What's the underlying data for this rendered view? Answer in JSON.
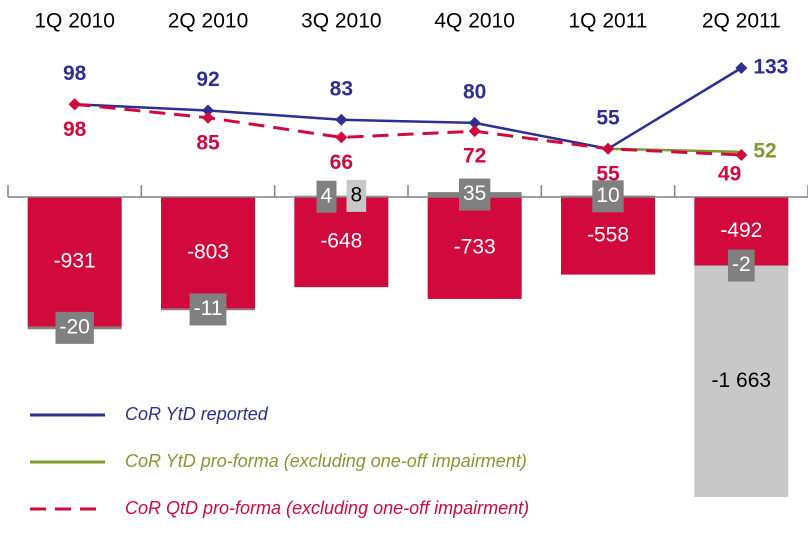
{
  "chart_data": {
    "type": "bar",
    "categories": [
      "1Q 2010",
      "2Q 2010",
      "3Q 2010",
      "4Q 2010",
      "1Q 2011",
      "2Q 2011"
    ],
    "series": [
      {
        "type": "bar",
        "color": "#d2093d",
        "text_color": "#ffffff",
        "values": [
          -931,
          -803,
          -648,
          -733,
          -558,
          -492
        ]
      },
      {
        "type": "bar",
        "color": "#808080",
        "text_color": "#ffffff",
        "values": [
          -20,
          -11,
          4,
          35,
          10,
          -2
        ]
      },
      {
        "type": "bar",
        "color": "#c8c8c8",
        "text_color": "#000000",
        "values": [
          null,
          null,
          8,
          null,
          null,
          -1663
        ],
        "value_labels": [
          null,
          null,
          "8",
          null,
          null,
          "-1 663"
        ]
      },
      {
        "type": "line",
        "name": "CoR YtD reported",
        "color": "#2b2f8f",
        "dash": false,
        "marker": "diamond",
        "values": [
          98,
          92,
          83,
          80,
          55,
          133
        ]
      },
      {
        "type": "line",
        "name": "CoR YtD pro-forma (excluding one-off impairment)",
        "color": "#7f9a2e",
        "dash": false,
        "marker": "none",
        "values": [
          null,
          null,
          null,
          null,
          55,
          52
        ],
        "value_labels": [
          null,
          null,
          null,
          null,
          null,
          "52"
        ]
      },
      {
        "type": "line",
        "name": "CoR QtD pro-forma (excluding one-off impairment)",
        "color": "#d2093d",
        "dash": true,
        "marker": "diamond",
        "values": [
          98,
          85,
          66,
          72,
          55,
          49
        ]
      }
    ],
    "legend": "bottom-left"
  }
}
